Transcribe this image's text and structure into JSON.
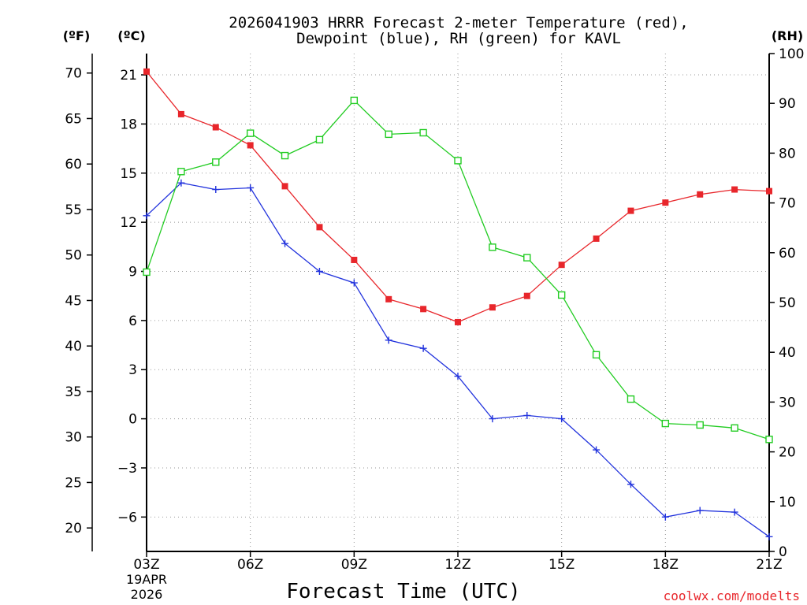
{
  "chart_data": {
    "type": "line",
    "title_line1": "2026041903 HRRR Forecast 2-meter Temperature (red),",
    "title_line2": "Dewpoint (blue), RH (green) for KAVL",
    "xlabel": "Forecast Time (UTC)",
    "unit_f": "(ºF)",
    "unit_c": "(ºC)",
    "unit_rh": "(RH)",
    "date_line1": "19APR",
    "date_line2": "2026",
    "credit": "coolwx.com/modelts",
    "hours": [
      3,
      4,
      5,
      6,
      7,
      8,
      9,
      10,
      11,
      12,
      13,
      14,
      15,
      16,
      17,
      18,
      19,
      20,
      21
    ],
    "x_ticks": [
      {
        "hour": 3,
        "label": "03Z"
      },
      {
        "hour": 6,
        "label": "06Z"
      },
      {
        "hour": 9,
        "label": "09Z"
      },
      {
        "hour": 12,
        "label": "12Z"
      },
      {
        "hour": 15,
        "label": "15Z"
      },
      {
        "hour": 18,
        "label": "18Z"
      },
      {
        "hour": 21,
        "label": "21Z"
      }
    ],
    "c_ticks": [
      {
        "v": 21,
        "label": "21"
      },
      {
        "v": 18,
        "label": "18"
      },
      {
        "v": 15,
        "label": "15"
      },
      {
        "v": 12,
        "label": "12"
      },
      {
        "v": 9,
        "label": "9"
      },
      {
        "v": 6,
        "label": "6"
      },
      {
        "v": 3,
        "label": "3"
      },
      {
        "v": 0,
        "label": "0"
      },
      {
        "v": -3,
        "label": "−3"
      },
      {
        "v": -6,
        "label": "−6"
      }
    ],
    "f_ticks": [
      {
        "v": 70,
        "label": "70"
      },
      {
        "v": 65,
        "label": "65"
      },
      {
        "v": 60,
        "label": "60"
      },
      {
        "v": 55,
        "label": "55"
      },
      {
        "v": 50,
        "label": "50"
      },
      {
        "v": 45,
        "label": "45"
      },
      {
        "v": 40,
        "label": "40"
      },
      {
        "v": 35,
        "label": "35"
      },
      {
        "v": 30,
        "label": "30"
      },
      {
        "v": 25,
        "label": "25"
      },
      {
        "v": 20,
        "label": "20"
      }
    ],
    "rh_ticks": [
      {
        "v": 100,
        "label": "100"
      },
      {
        "v": 90,
        "label": "90"
      },
      {
        "v": 80,
        "label": "80"
      },
      {
        "v": 70,
        "label": "70"
      },
      {
        "v": 60,
        "label": "60"
      },
      {
        "v": 50,
        "label": "50"
      },
      {
        "v": 40,
        "label": "40"
      },
      {
        "v": 30,
        "label": "30"
      },
      {
        "v": 20,
        "label": "20"
      },
      {
        "v": 10,
        "label": "10"
      },
      {
        "v": 0,
        "label": "0"
      }
    ],
    "c_range": [
      -8.1,
      22.3
    ],
    "rh_range": [
      0,
      100
    ],
    "series": [
      {
        "name": "Temperature",
        "unit": "C",
        "color": "#e8262b",
        "marker": "filled-square",
        "values": [
          21.2,
          18.6,
          17.8,
          16.7,
          14.2,
          11.7,
          9.7,
          7.3,
          6.7,
          5.9,
          6.8,
          7.5,
          9.4,
          11.0,
          12.7,
          13.2,
          13.7,
          14.0,
          13.9
        ]
      },
      {
        "name": "Dewpoint",
        "unit": "C",
        "color": "#2233dd",
        "marker": "plus",
        "values": [
          12.4,
          14.4,
          14.0,
          14.1,
          10.7,
          9.0,
          8.3,
          4.8,
          4.3,
          2.6,
          0.0,
          0.2,
          0.0,
          -1.9,
          -4.0,
          -6.0,
          -5.6,
          -5.7,
          -7.2
        ]
      },
      {
        "name": "RH",
        "unit": "%",
        "color": "#22cc22",
        "marker": "open-square",
        "values": [
          56.1,
          76.3,
          78.2,
          84.0,
          79.5,
          82.7,
          90.6,
          83.8,
          84.1,
          78.5,
          61.1,
          59.0,
          51.5,
          39.5,
          30.6,
          25.7,
          25.4,
          24.8,
          22.5
        ]
      }
    ]
  }
}
